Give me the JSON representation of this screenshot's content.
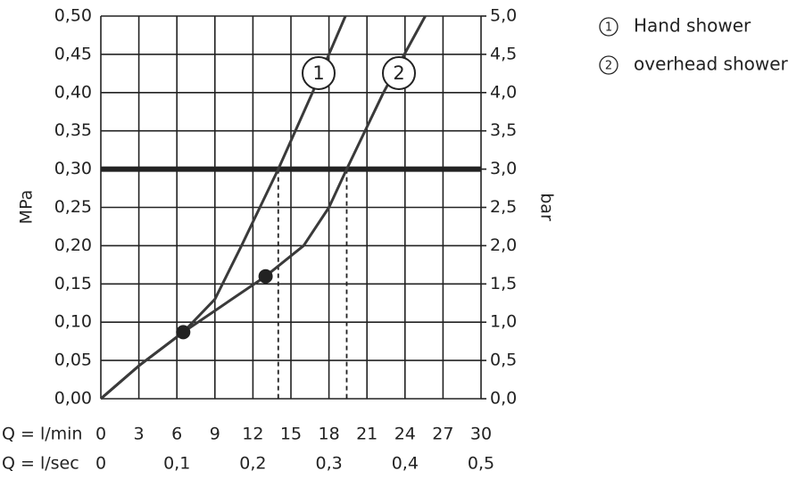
{
  "chart_data": {
    "type": "line",
    "ylabel": "MPa",
    "y2label": "bar",
    "xlabel": "Q = l/min",
    "x2label": "Q = l/sec",
    "xlim": [
      0,
      30
    ],
    "xticks": [
      0,
      3,
      6,
      9,
      12,
      15,
      18,
      21,
      24,
      27,
      30
    ],
    "x2lim": [
      0,
      0.5
    ],
    "x2ticks": [
      0,
      {
        "value": 0.1,
        "label": "0,1"
      },
      {
        "value": 0.2,
        "label": "0,2"
      },
      {
        "value": 0.3,
        "label": "0,3"
      },
      {
        "value": 0.4,
        "label": "0,4"
      },
      {
        "value": 0.5,
        "label": "0,5"
      }
    ],
    "ylim": [
      0,
      0.5
    ],
    "yticks": [
      {
        "value": 0,
        "label": "0,00"
      },
      {
        "value": 0.05,
        "label": "0,05"
      },
      {
        "value": 0.1,
        "label": "0,10"
      },
      {
        "value": 0.15,
        "label": "0,15"
      },
      {
        "value": 0.2,
        "label": "0,20"
      },
      {
        "value": 0.25,
        "label": "0,25"
      },
      {
        "value": 0.3,
        "label": "0,30"
      },
      {
        "value": 0.35,
        "label": "0,35"
      },
      {
        "value": 0.4,
        "label": "0,40"
      },
      {
        "value": 0.45,
        "label": "0,45"
      },
      {
        "value": 0.5,
        "label": "0,50"
      }
    ],
    "y2lim": [
      0,
      5
    ],
    "y2ticks": [
      {
        "value": 0,
        "label": "0,0"
      },
      {
        "value": 0.5,
        "label": "0,5"
      },
      {
        "value": 1,
        "label": "1,0"
      },
      {
        "value": 1.5,
        "label": "1,5"
      },
      {
        "value": 2,
        "label": "2,0"
      },
      {
        "value": 2.5,
        "label": "2,5"
      },
      {
        "value": 3,
        "label": "3,0"
      },
      {
        "value": 3.5,
        "label": "3,5"
      },
      {
        "value": 4,
        "label": "4,0"
      },
      {
        "value": 4.5,
        "label": "4,5"
      },
      {
        "value": 5,
        "label": "5,0"
      }
    ],
    "grid": true,
    "hline": 0.3,
    "vlines": [
      {
        "x": 14,
        "y": 0.3
      },
      {
        "x": 19.4,
        "y": 0.3
      }
    ],
    "points": [
      {
        "x": 6.5,
        "y": 0.087
      },
      {
        "x": 13,
        "y": 0.16
      }
    ],
    "series": [
      {
        "name": "Hand shower",
        "label": "1",
        "color": "#3a3a3a",
        "x": [
          0,
          3,
          6.5,
          9,
          11.1,
          14,
          16.7,
          19.3
        ],
        "values": [
          0,
          0.043,
          0.087,
          0.13,
          0.2,
          0.3,
          0.4,
          0.5
        ]
      },
      {
        "name": "overhead shower",
        "label": "2",
        "color": "#3a3a3a",
        "x": [
          0,
          3,
          6.5,
          9,
          13,
          16,
          18,
          19.4,
          22.3,
          25.6
        ],
        "values": [
          0,
          0.043,
          0.087,
          0.115,
          0.16,
          0.2,
          0.25,
          0.3,
          0.4,
          0.5
        ]
      }
    ]
  }
}
